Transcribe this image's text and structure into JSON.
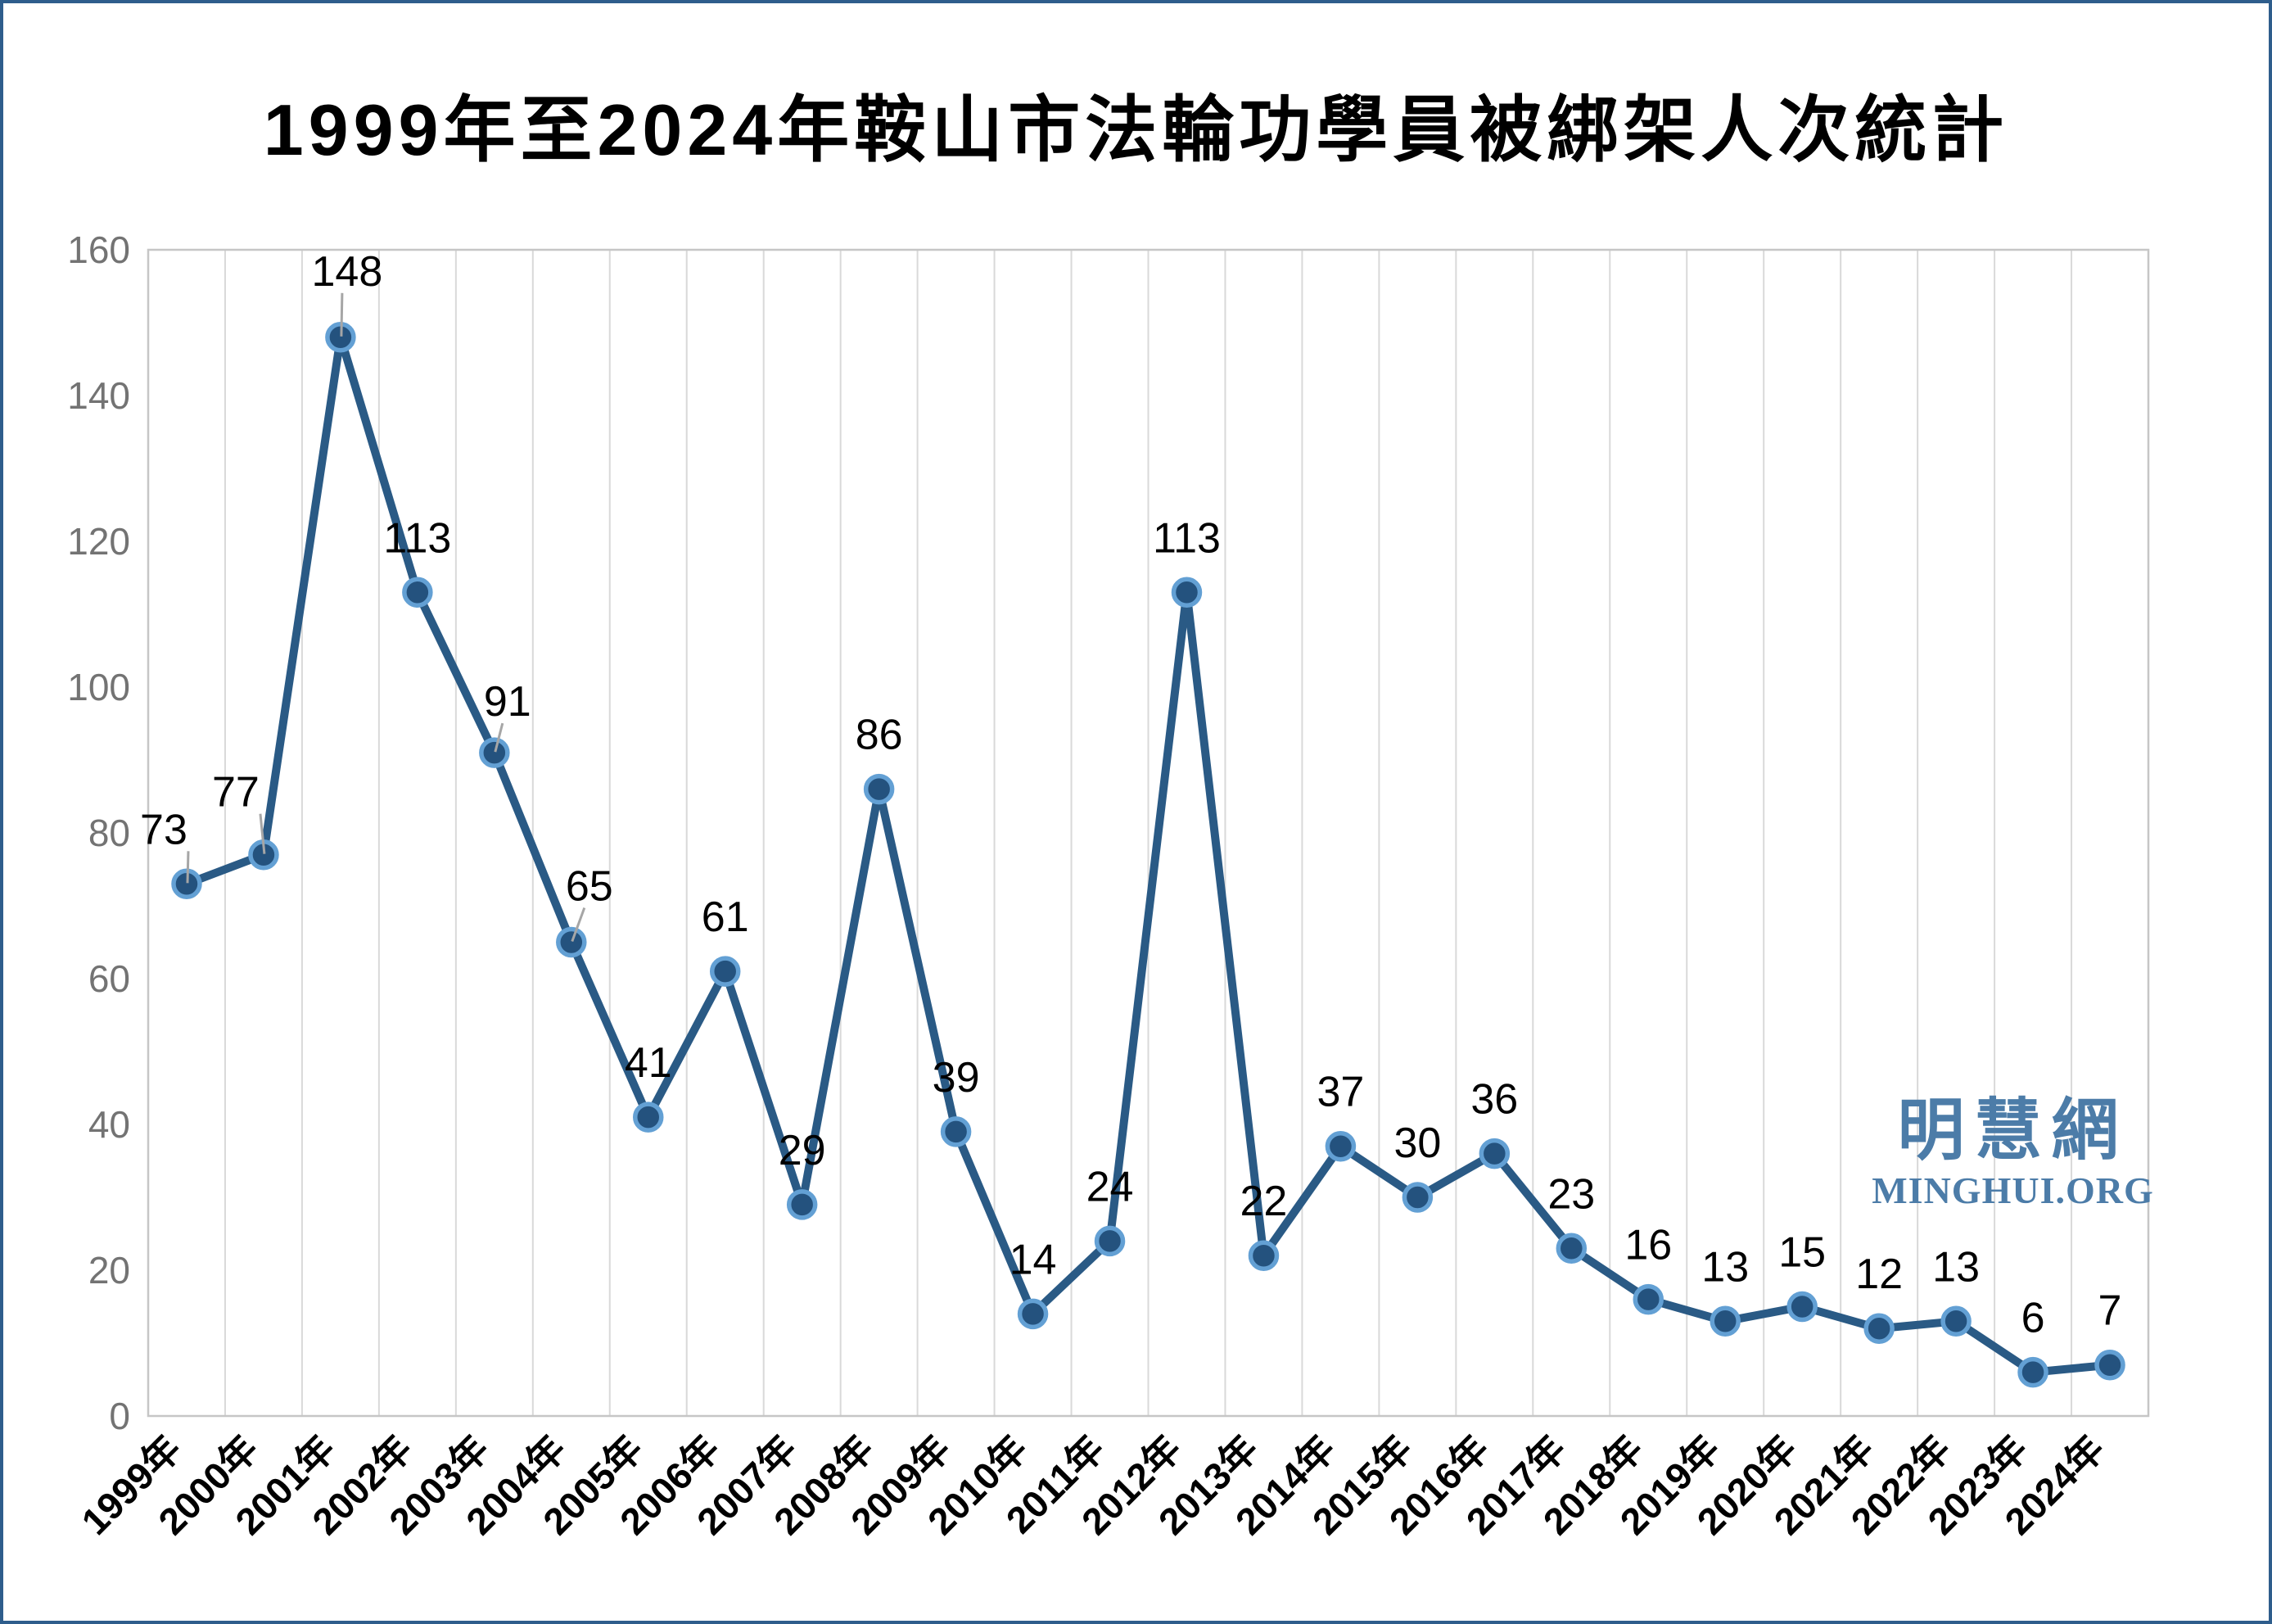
{
  "page": {
    "title": "1999年至2024年鞍山市法輪功學員被綁架人次統計"
  },
  "watermark": {
    "cjk": "明慧網",
    "latin": "MINGHUI.ORG",
    "color": "#4C7CA8"
  },
  "chart_data": {
    "type": "line",
    "title": "1999年至2024年鞍山市法輪功學員被綁架人次統計",
    "categories": [
      "1999年",
      "2000年",
      "2001年",
      "2002年",
      "2003年",
      "2004年",
      "2005年",
      "2006年",
      "2007年",
      "2008年",
      "2009年",
      "2010年",
      "2011年",
      "2012年",
      "2013年",
      "2014年",
      "2015年",
      "2016年",
      "2017年",
      "2018年",
      "2019年",
      "2020年",
      "2021年",
      "2022年",
      "2023年",
      "2024年"
    ],
    "values": [
      73,
      77,
      148,
      113,
      91,
      65,
      41,
      61,
      29,
      86,
      39,
      14,
      24,
      113,
      22,
      37,
      30,
      36,
      23,
      16,
      13,
      15,
      12,
      13,
      6,
      7
    ],
    "xlabel": "",
    "ylabel": "",
    "ylim": [
      0,
      160
    ],
    "yticks": [
      0,
      20,
      40,
      60,
      80,
      100,
      120,
      140,
      160
    ],
    "grid": "vertical-only",
    "legend": "none",
    "marker": "circle",
    "data_labels_shown": true,
    "colors": {
      "line": "#2A5A85",
      "marker_fill": "#24527E",
      "marker_ring": "#63A0D4",
      "gridline": "#D9D9D9",
      "plot_border": "#C6C6C6",
      "axis_text": "#737373",
      "tick_text": "#000000",
      "data_label": "#000000",
      "leader_line": "#A6A6A6"
    },
    "data_labels": {
      "default_offset": [
        0,
        -66
      ],
      "custom_offsets": {
        "0": [
          -28,
          -66
        ],
        "1": [
          -34,
          -76
        ],
        "2": [
          8,
          -80
        ],
        "4": [
          16,
          -62
        ],
        "5": [
          22,
          -68
        ]
      },
      "leader_indices": [
        0,
        1,
        2,
        4,
        5
      ]
    }
  }
}
